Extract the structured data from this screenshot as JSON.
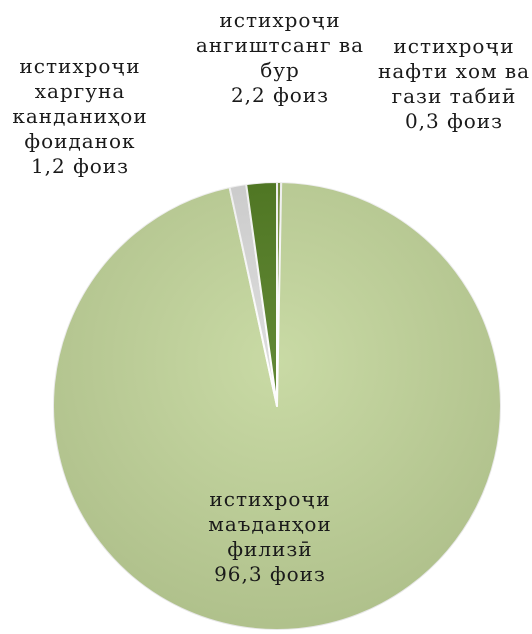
{
  "chart_data": {
    "type": "pie",
    "start_angle_deg": 0,
    "direction": "clockwise",
    "slices": [
      {
        "name": "нафти хом ва гази табиӣ",
        "value": 0.3,
        "color": "#77933c",
        "label_lines": [
          "истихроҷи",
          "нафти хом ва",
          "гази табиӣ",
          "0,3 фоиз"
        ]
      },
      {
        "name": "маъданҳои филизӣ",
        "value": 96.3,
        "color": "#c3d69b",
        "label_lines": [
          "истихроҷи",
          "маъданҳои",
          "филизӣ",
          "96,3 фоиз"
        ]
      },
      {
        "name": "харгуна канданиҳои фоиданок",
        "value": 1.2,
        "color": "#d9d9d9",
        "label_lines": [
          "истихроҷи",
          "харгуна",
          "канданиҳои",
          "фоиданок",
          "1,2 фоиз"
        ]
      },
      {
        "name": "ангиштсанг ва бур",
        "value": 2.2,
        "color": "#4f7a1e",
        "label_lines": [
          "истихроҷи",
          "ангиштсанг ва",
          "бур",
          "2,2 фоиз"
        ]
      }
    ]
  }
}
